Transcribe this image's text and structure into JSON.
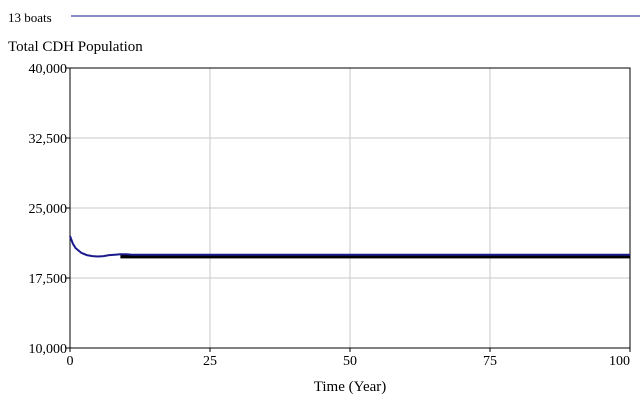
{
  "chart_data": {
    "type": "line",
    "title": "Total CDH Population",
    "xlabel": "Time (Year)",
    "ylabel": "",
    "xlim": [
      0,
      100
    ],
    "ylim": [
      10000,
      40000
    ],
    "x_ticks": [
      0,
      25,
      50,
      75,
      100
    ],
    "y_ticks": [
      10000,
      17500,
      25000,
      32500,
      40000
    ],
    "x_tick_labels": [
      "0",
      "25",
      "50",
      "75",
      "100"
    ],
    "y_tick_labels": [
      "10,000",
      "17,500",
      "25,000",
      "32,500",
      "40,000"
    ],
    "grid": true,
    "legend_position": "top-left",
    "colors": {
      "series": "#1a1a8c",
      "band": "#000000",
      "grid": "#c8c8c8"
    },
    "series": [
      {
        "name": "13 boats",
        "x": [
          0,
          0.5,
          1,
          2,
          3,
          4,
          5,
          6,
          7,
          8,
          9,
          10,
          11,
          12,
          20,
          30,
          40,
          50,
          60,
          70,
          80,
          90,
          100
        ],
        "values": [
          22000,
          21200,
          20700,
          20200,
          19950,
          19850,
          19800,
          19850,
          19950,
          20000,
          20050,
          20050,
          20000,
          20000,
          20000,
          20000,
          20000,
          20000,
          20000,
          20000,
          20000,
          20000,
          20000
        ],
        "band": {
          "x_start": 9,
          "x_end": 100,
          "upper": 20000,
          "lower": 19600
        }
      }
    ]
  }
}
